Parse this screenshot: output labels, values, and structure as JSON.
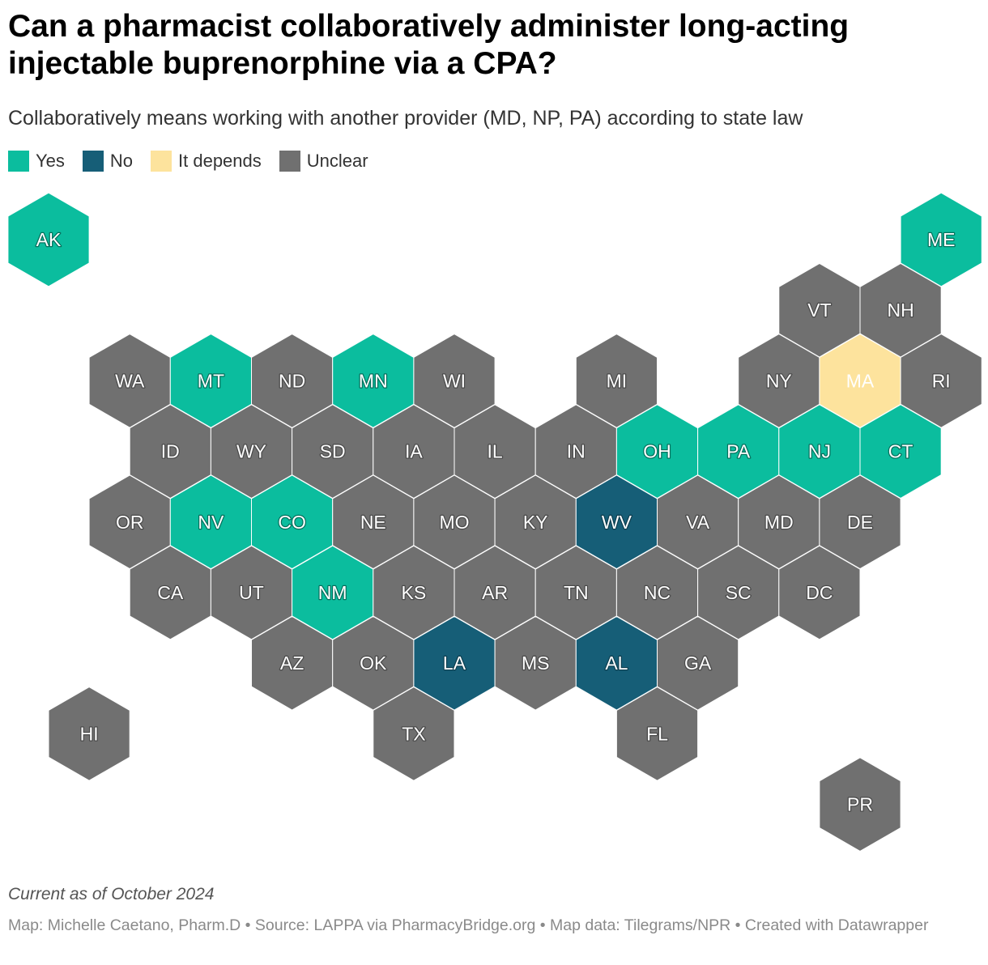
{
  "title": "Can a pharmacist collaboratively administer long-acting injectable buprenorphine via a CPA?",
  "subtitle": "Collaboratively means working with another provider (MD, NP, PA) according to state law",
  "legend": [
    {
      "key": "yes",
      "label": "Yes",
      "color": "#0bbd9e"
    },
    {
      "key": "no",
      "label": "No",
      "color": "#165e77"
    },
    {
      "key": "depends",
      "label": "It depends",
      "color": "#fde39d"
    },
    {
      "key": "unclear",
      "label": "Unclear",
      "color": "#707070"
    }
  ],
  "footer": {
    "note": "Current as of October 2024",
    "credits": "Map: Michelle Caetano, Pharm.D • Source: LAPPA via PharmacyBridge.org • Map data: Tilegrams/NPR • Created with Datawrapper"
  },
  "chart_data": {
    "type": "hex-tile map",
    "states": [
      {
        "code": "AK",
        "row": 0,
        "col": 0,
        "status": "yes"
      },
      {
        "code": "ME",
        "row": 0,
        "col": 11,
        "status": "yes"
      },
      {
        "code": "VT",
        "row": 1,
        "col": 9.5,
        "status": "unclear"
      },
      {
        "code": "NH",
        "row": 1,
        "col": 10.5,
        "status": "unclear"
      },
      {
        "code": "WA",
        "row": 2,
        "col": 1,
        "status": "unclear"
      },
      {
        "code": "MT",
        "row": 2,
        "col": 2,
        "status": "yes"
      },
      {
        "code": "ND",
        "row": 2,
        "col": 3,
        "status": "unclear"
      },
      {
        "code": "MN",
        "row": 2,
        "col": 4,
        "status": "yes"
      },
      {
        "code": "WI",
        "row": 2,
        "col": 5,
        "status": "unclear"
      },
      {
        "code": "MI",
        "row": 2,
        "col": 7,
        "status": "unclear"
      },
      {
        "code": "NY",
        "row": 2,
        "col": 9,
        "status": "unclear"
      },
      {
        "code": "MA",
        "row": 2,
        "col": 10,
        "status": "depends"
      },
      {
        "code": "RI",
        "row": 2,
        "col": 11,
        "status": "unclear"
      },
      {
        "code": "ID",
        "row": 3,
        "col": 1.5,
        "status": "unclear"
      },
      {
        "code": "WY",
        "row": 3,
        "col": 2.5,
        "status": "unclear"
      },
      {
        "code": "SD",
        "row": 3,
        "col": 3.5,
        "status": "unclear"
      },
      {
        "code": "IA",
        "row": 3,
        "col": 4.5,
        "status": "unclear"
      },
      {
        "code": "IL",
        "row": 3,
        "col": 5.5,
        "status": "unclear"
      },
      {
        "code": "IN",
        "row": 3,
        "col": 6.5,
        "status": "unclear"
      },
      {
        "code": "OH",
        "row": 3,
        "col": 7.5,
        "status": "yes"
      },
      {
        "code": "PA",
        "row": 3,
        "col": 8.5,
        "status": "yes"
      },
      {
        "code": "NJ",
        "row": 3,
        "col": 9.5,
        "status": "yes"
      },
      {
        "code": "CT",
        "row": 3,
        "col": 10.5,
        "status": "yes"
      },
      {
        "code": "OR",
        "row": 4,
        "col": 1,
        "status": "unclear"
      },
      {
        "code": "NV",
        "row": 4,
        "col": 2,
        "status": "yes"
      },
      {
        "code": "CO",
        "row": 4,
        "col": 3,
        "status": "yes"
      },
      {
        "code": "NE",
        "row": 4,
        "col": 4,
        "status": "unclear"
      },
      {
        "code": "MO",
        "row": 4,
        "col": 5,
        "status": "unclear"
      },
      {
        "code": "KY",
        "row": 4,
        "col": 6,
        "status": "unclear"
      },
      {
        "code": "WV",
        "row": 4,
        "col": 7,
        "status": "no"
      },
      {
        "code": "VA",
        "row": 4,
        "col": 8,
        "status": "unclear"
      },
      {
        "code": "MD",
        "row": 4,
        "col": 9,
        "status": "unclear"
      },
      {
        "code": "DE",
        "row": 4,
        "col": 10,
        "status": "unclear"
      },
      {
        "code": "CA",
        "row": 5,
        "col": 1.5,
        "status": "unclear"
      },
      {
        "code": "UT",
        "row": 5,
        "col": 2.5,
        "status": "unclear"
      },
      {
        "code": "NM",
        "row": 5,
        "col": 3.5,
        "status": "yes"
      },
      {
        "code": "KS",
        "row": 5,
        "col": 4.5,
        "status": "unclear"
      },
      {
        "code": "AR",
        "row": 5,
        "col": 5.5,
        "status": "unclear"
      },
      {
        "code": "TN",
        "row": 5,
        "col": 6.5,
        "status": "unclear"
      },
      {
        "code": "NC",
        "row": 5,
        "col": 7.5,
        "status": "unclear"
      },
      {
        "code": "SC",
        "row": 5,
        "col": 8.5,
        "status": "unclear"
      },
      {
        "code": "DC",
        "row": 5,
        "col": 9.5,
        "status": "unclear"
      },
      {
        "code": "AZ",
        "row": 6,
        "col": 3,
        "status": "unclear"
      },
      {
        "code": "OK",
        "row": 6,
        "col": 4,
        "status": "unclear"
      },
      {
        "code": "LA",
        "row": 6,
        "col": 5,
        "status": "no"
      },
      {
        "code": "MS",
        "row": 6,
        "col": 6,
        "status": "unclear"
      },
      {
        "code": "AL",
        "row": 6,
        "col": 7,
        "status": "no"
      },
      {
        "code": "GA",
        "row": 6,
        "col": 8,
        "status": "unclear"
      },
      {
        "code": "HI",
        "row": 7,
        "col": 0.5,
        "status": "unclear"
      },
      {
        "code": "TX",
        "row": 7,
        "col": 4.5,
        "status": "unclear"
      },
      {
        "code": "FL",
        "row": 7,
        "col": 7.5,
        "status": "unclear"
      },
      {
        "code": "PR",
        "row": 8,
        "col": 10,
        "status": "unclear"
      }
    ]
  }
}
